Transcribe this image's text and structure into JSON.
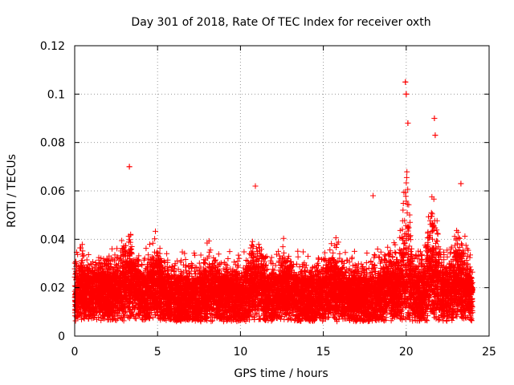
{
  "chart_data": {
    "type": "scatter",
    "title": "Day 301 of 2018, Rate Of TEC Index for receiver oxth",
    "xlabel": "GPS time / hours",
    "ylabel": "ROTI / TECUs",
    "xlim": [
      0,
      25
    ],
    "ylim": [
      0,
      0.12
    ],
    "x_ticks": [
      0,
      5,
      10,
      15,
      20,
      25
    ],
    "x_tick_labels": [
      "0",
      "5",
      "10",
      "15",
      "20",
      "25"
    ],
    "y_ticks": [
      0,
      0.02,
      0.04,
      0.06,
      0.08,
      0.1,
      0.12
    ],
    "y_tick_labels": [
      "0",
      "0.02",
      "0.04",
      "0.06",
      "0.08",
      "0.1",
      "0.12"
    ],
    "grid": true,
    "marker": "+",
    "color": "#ff0000",
    "series": [
      {
        "name": "ROTI",
        "data_range_hours": [
          0,
          24
        ],
        "baseline": 0.015,
        "notable_points": [
          {
            "x": 3.3,
            "y": 0.07
          },
          {
            "x": 10.9,
            "y": 0.062
          },
          {
            "x": 18.0,
            "y": 0.058
          },
          {
            "x": 19.95,
            "y": 0.105
          },
          {
            "x": 20.0,
            "y": 0.1
          },
          {
            "x": 20.1,
            "y": 0.088
          },
          {
            "x": 21.7,
            "y": 0.09
          },
          {
            "x": 21.75,
            "y": 0.083
          },
          {
            "x": 23.3,
            "y": 0.063
          }
        ]
      }
    ]
  }
}
